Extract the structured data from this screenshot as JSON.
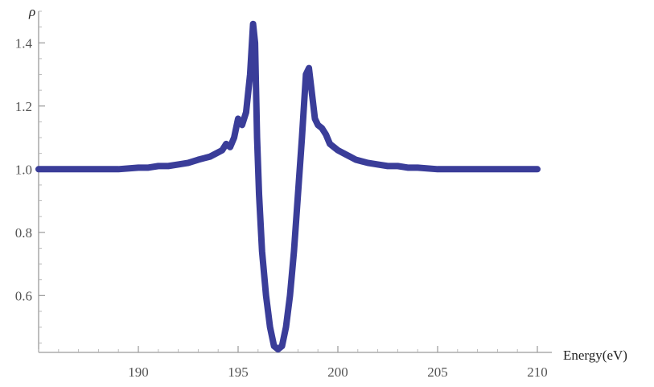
{
  "chart_data": {
    "type": "line",
    "title": "",
    "xlabel": "Energy(eV)",
    "ylabel": "ρ",
    "xlim": [
      185,
      210
    ],
    "ylim": [
      0.42,
      1.5
    ],
    "grid": false,
    "x_ticks": [
      190,
      195,
      200,
      205,
      210
    ],
    "y_ticks": [
      0.6,
      0.8,
      1.0,
      1.2,
      1.4
    ],
    "x_tick_labels": [
      "190",
      "195",
      "200",
      "205",
      "210"
    ],
    "y_tick_labels": [
      "0.6",
      "0.8",
      "1.0",
      "1.2",
      "1.4"
    ],
    "line_color": "#3a3d99",
    "series": [
      {
        "x": [
          185.0,
          186.0,
          187.0,
          188.0,
          189.0,
          190.0,
          190.5,
          191.0,
          191.5,
          192.0,
          192.5,
          193.0,
          193.3,
          193.6,
          193.9,
          194.2,
          194.4,
          194.6,
          194.8,
          195.0,
          195.2,
          195.4,
          195.6,
          195.75,
          195.85,
          195.95,
          196.05,
          196.2,
          196.4,
          196.6,
          196.8,
          197.0,
          197.2,
          197.4,
          197.6,
          197.8,
          198.0,
          198.2,
          198.4,
          198.55,
          198.7,
          198.85,
          199.0,
          199.2,
          199.4,
          199.6,
          199.8,
          200.0,
          200.3,
          200.6,
          200.9,
          201.2,
          201.5,
          202.0,
          202.5,
          203.0,
          203.5,
          204.0,
          205.0,
          206.0,
          207.0,
          208.0,
          209.0,
          210.0
        ],
        "y": [
          1.0,
          1.0,
          1.0,
          1.0,
          1.0,
          1.005,
          1.005,
          1.01,
          1.01,
          1.015,
          1.02,
          1.03,
          1.035,
          1.04,
          1.05,
          1.06,
          1.08,
          1.07,
          1.1,
          1.16,
          1.14,
          1.18,
          1.3,
          1.46,
          1.4,
          1.1,
          0.92,
          0.74,
          0.6,
          0.5,
          0.44,
          0.43,
          0.44,
          0.5,
          0.6,
          0.74,
          0.92,
          1.1,
          1.3,
          1.32,
          1.24,
          1.16,
          1.14,
          1.13,
          1.11,
          1.08,
          1.07,
          1.06,
          1.05,
          1.04,
          1.03,
          1.025,
          1.02,
          1.015,
          1.01,
          1.01,
          1.005,
          1.005,
          1.0,
          1.0,
          1.0,
          1.0,
          1.0,
          1.0
        ]
      }
    ]
  }
}
